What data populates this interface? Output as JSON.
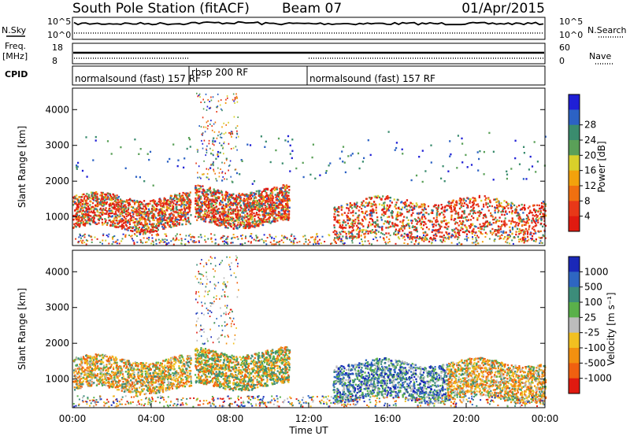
{
  "header": {
    "station": "South Pole Station (fitACF)",
    "beam": "Beam 07",
    "date": "01/Apr/2015"
  },
  "x_axis": {
    "label": "Time UT",
    "ticks": [
      "00:00",
      "04:00",
      "08:00",
      "12:00",
      "16:00",
      "20:00",
      "00:00"
    ],
    "range_hours": [
      0,
      24
    ]
  },
  "nsky_panel": {
    "left_label": "N.Sky",
    "left_ticks": [
      "10^5",
      "10^0"
    ],
    "right_label": "N.Search",
    "right_ticks": [
      "10^5",
      "10^0"
    ]
  },
  "freq_panel": {
    "left_label_line1": "Freq.",
    "left_label_line2": "[MHz]",
    "left_ticks": [
      "18",
      "8"
    ],
    "right_label": "Nave",
    "right_ticks": [
      "60",
      "0"
    ]
  },
  "cpid_panel": {
    "label": "CPID",
    "segments": [
      {
        "name": "normalsound (fast) 157 RF",
        "start": 0,
        "end": 6.2
      },
      {
        "name": "rbsp 200 RF",
        "start": 6.2,
        "end": 12.0
      },
      {
        "name": "normalsound (fast) 157 RF",
        "start": 12.0,
        "end": 24
      }
    ]
  },
  "chart_data": [
    {
      "type": "heatmap",
      "name": "power",
      "ylabel": "Slant Range [km]",
      "yticks": [
        "1000",
        "2000",
        "3000",
        "4000"
      ],
      "ylim": [
        200,
        4600
      ],
      "colorbar": {
        "label": "Power [dB]",
        "ticks": [
          "4",
          "8",
          "12",
          "16",
          "20",
          "24",
          "28"
        ],
        "colors": [
          "#1f1fd6",
          "#2c62c4",
          "#3a8c6e",
          "#5aa058",
          "#d8d02a",
          "#f2a20c",
          "#f07010",
          "#e83818",
          "#e01a10"
        ]
      },
      "scatter_bands": [
        {
          "x": [
            0.0,
            6.0
          ],
          "y": [
            700,
            1600
          ],
          "level": "high"
        },
        {
          "x": [
            6.2,
            11.0
          ],
          "y": [
            800,
            1800
          ],
          "level": "high"
        },
        {
          "x": [
            13.2,
            24.0
          ],
          "y": [
            450,
            1500
          ],
          "level": "high"
        },
        {
          "x": [
            0.0,
            24.0
          ],
          "y": [
            2000,
            3300
          ],
          "level": "sparse"
        }
      ]
    },
    {
      "type": "heatmap",
      "name": "velocity",
      "ylabel": "Slant Range [km]",
      "yticks": [
        "1000",
        "2000",
        "3000",
        "4000"
      ],
      "ylim": [
        200,
        4600
      ],
      "colorbar": {
        "label": "Velocity [m s⁻¹]",
        "ticks": [
          "1000",
          "500",
          "100",
          "25",
          "-25",
          "-100",
          "-500",
          "-1000"
        ],
        "colors": [
          "#1a28b8",
          "#2e66c2",
          "#3c8c7a",
          "#5ab04a",
          "#bcbcbc",
          "#f2c020",
          "#f29010",
          "#f06010",
          "#e01a10"
        ]
      },
      "scatter_bands": [
        {
          "x": [
            0.0,
            6.0
          ],
          "y": [
            700,
            1600
          ],
          "level": "negative"
        },
        {
          "x": [
            6.2,
            11.0
          ],
          "y": [
            800,
            1800
          ],
          "level": "mixed"
        },
        {
          "x": [
            13.2,
            19.0
          ],
          "y": [
            450,
            1500
          ],
          "level": "positive"
        },
        {
          "x": [
            19.0,
            24.0
          ],
          "y": [
            450,
            1500
          ],
          "level": "negative"
        }
      ]
    }
  ]
}
